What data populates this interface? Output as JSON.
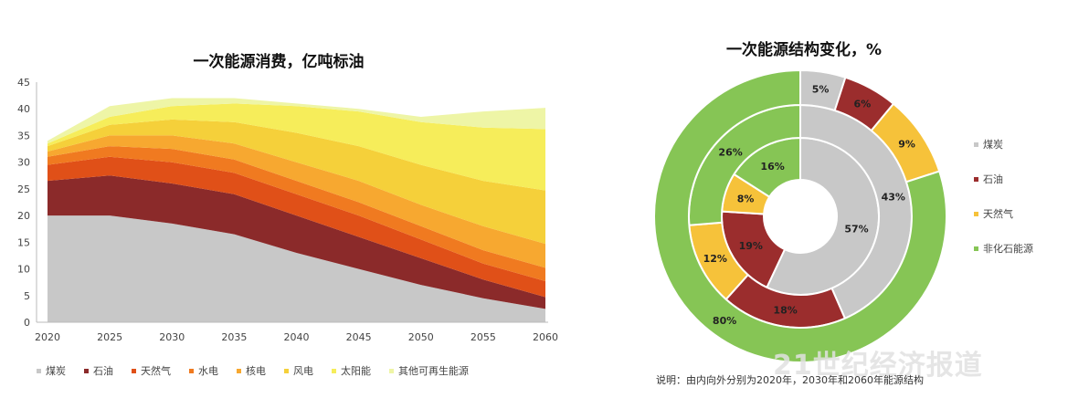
{
  "chart_data": [
    {
      "type": "area",
      "title": "一次能源消费，亿吨标油",
      "x": [
        2020,
        2025,
        2030,
        2035,
        2040,
        2045,
        2050,
        2055,
        2060
      ],
      "ylim": [
        0,
        45
      ],
      "yticks": [
        0,
        5,
        10,
        15,
        20,
        25,
        30,
        35,
        40,
        45
      ],
      "stacked": true,
      "grid": false,
      "legend_position": "bottom",
      "series": [
        {
          "name": "煤炭",
          "color": "#c8c8c8",
          "values": [
            20,
            20,
            18.5,
            16.5,
            13,
            10,
            7,
            4.5,
            2.5
          ]
        },
        {
          "name": "石油",
          "color": "#8b2a2a",
          "values": [
            6.5,
            7.5,
            7.5,
            7.5,
            7,
            6,
            5,
            3.5,
            2.2
          ]
        },
        {
          "name": "天然气",
          "color": "#e05018",
          "values": [
            3,
            3.5,
            4,
            4,
            4,
            4,
            3.5,
            3,
            3
          ]
        },
        {
          "name": "水电",
          "color": "#f07a20",
          "values": [
            1.5,
            2,
            2.5,
            2.5,
            2.5,
            2.5,
            2.5,
            2.5,
            2.5
          ]
        },
        {
          "name": "核电",
          "color": "#f7a830",
          "values": [
            1,
            2,
            2.5,
            3,
            3.5,
            4,
            4,
            4.5,
            4.5
          ]
        },
        {
          "name": "风电",
          "color": "#f5d03a",
          "values": [
            1,
            2,
            3,
            4,
            5.5,
            6.5,
            7.5,
            8.5,
            10
          ]
        },
        {
          "name": "太阳能",
          "color": "#f6ed5a",
          "values": [
            0.5,
            1.5,
            2.5,
            3.5,
            5,
            6.5,
            8,
            10,
            11.5
          ]
        },
        {
          "name": "其他可再生能源",
          "color": "#eef5a6",
          "values": [
            0.5,
            2,
            1.5,
            1,
            0.5,
            0.5,
            1,
            3,
            4
          ]
        }
      ]
    },
    {
      "type": "pie",
      "subtype": "donut",
      "title": "一次能源结构变化，%",
      "categories": [
        "煤炭",
        "石油",
        "天然气",
        "非化石能源"
      ],
      "colors": [
        "#c8c8c8",
        "#9b2d2d",
        "#f6c23a",
        "#86c555"
      ],
      "rings": [
        {
          "name": "2020",
          "values": [
            57,
            19,
            8,
            16
          ],
          "labels": [
            "57%",
            "19%",
            "8%",
            "16%"
          ]
        },
        {
          "name": "2030",
          "values": [
            43,
            18,
            12,
            26
          ],
          "labels": [
            "43%",
            "18%",
            "12%",
            "26%"
          ]
        },
        {
          "name": "2060",
          "values": [
            5,
            6,
            9,
            80
          ],
          "labels": [
            "5%",
            "6%",
            "9%",
            "80%"
          ]
        }
      ],
      "legend_position": "right",
      "note": "说明：由内向外分别为2020年，2030年和2060年能源结构"
    }
  ],
  "watermark": "21世纪经济报道"
}
